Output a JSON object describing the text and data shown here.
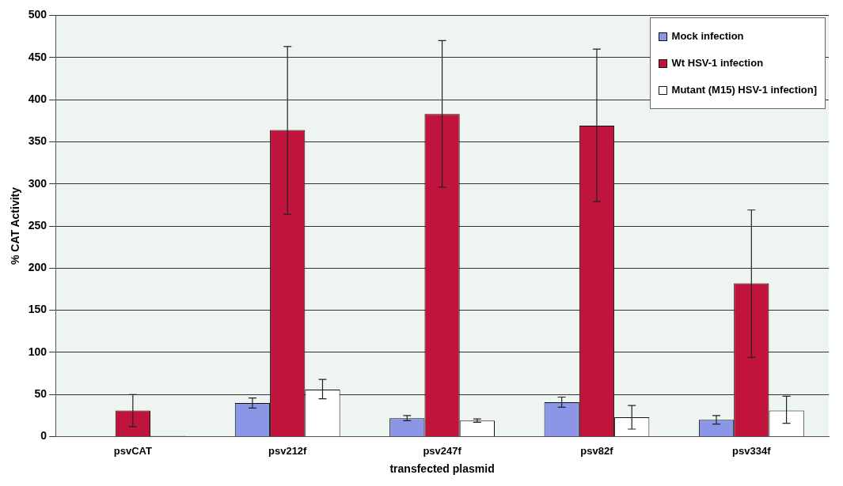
{
  "chart_data": {
    "type": "bar",
    "xlabel": "transfected plasmid",
    "ylabel": "% CAT Activity",
    "categories": [
      "psvCAT",
      "psv212f",
      "psv247f",
      "psv82f",
      "psv334f"
    ],
    "series": [
      {
        "name": "Mock infection",
        "color": "#8c96e6",
        "values": [
          null,
          40,
          22,
          41,
          20
        ],
        "errors": [
          null,
          6,
          3,
          6,
          5
        ]
      },
      {
        "name": "Wt HSV-1 infection",
        "color": "#c0143c",
        "values": [
          31,
          364,
          383,
          369,
          182
        ],
        "errors": [
          [
            12,
            50
          ],
          [
            264,
            463
          ],
          [
            296,
            470
          ],
          [
            279,
            460
          ],
          [
            94,
            269
          ]
        ]
      },
      {
        "name": "Mutant (M15) HSV-1 infection]",
        "color": "#ffffff",
        "values": [
          1,
          56,
          19,
          23,
          31
        ],
        "errors": [
          null,
          [
            45,
            68
          ],
          2,
          [
            9,
            37
          ],
          [
            16,
            48
          ]
        ]
      }
    ],
    "ylim": [
      0,
      500
    ],
    "yticks": [
      0,
      50,
      100,
      150,
      200,
      250,
      300,
      350,
      400,
      450,
      500
    ],
    "grid": "y",
    "legend": "top right"
  }
}
